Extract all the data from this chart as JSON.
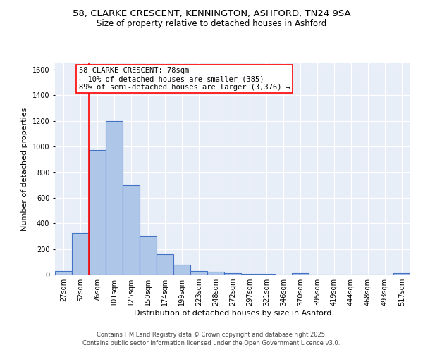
{
  "title_line1": "58, CLARKE CRESCENT, KENNINGTON, ASHFORD, TN24 9SA",
  "title_line2": "Size of property relative to detached houses in Ashford",
  "xlabel": "Distribution of detached houses by size in Ashford",
  "ylabel": "Number of detached properties",
  "categories": [
    "27sqm",
    "52sqm",
    "76sqm",
    "101sqm",
    "125sqm",
    "150sqm",
    "174sqm",
    "199sqm",
    "223sqm",
    "248sqm",
    "272sqm",
    "297sqm",
    "321sqm",
    "346sqm",
    "370sqm",
    "395sqm",
    "419sqm",
    "444sqm",
    "468sqm",
    "493sqm",
    "517sqm"
  ],
  "values": [
    25,
    325,
    975,
    1200,
    700,
    305,
    160,
    75,
    30,
    20,
    10,
    8,
    5,
    0,
    10,
    0,
    0,
    0,
    0,
    0,
    10
  ],
  "bar_color": "#aec6e8",
  "bar_edge_color": "#4472c4",
  "red_line_index": 2,
  "annotation_text": "58 CLARKE CRESCENT: 78sqm\n← 10% of detached houses are smaller (385)\n89% of semi-detached houses are larger (3,376) →",
  "annotation_box_color": "white",
  "annotation_border_color": "red",
  "ylim": [
    0,
    1650
  ],
  "yticks": [
    0,
    200,
    400,
    600,
    800,
    1000,
    1200,
    1400,
    1600
  ],
  "background_color": "#e8eef8",
  "grid_color": "#ffffff",
  "footer_line1": "Contains HM Land Registry data © Crown copyright and database right 2025.",
  "footer_line2": "Contains public sector information licensed under the Open Government Licence v3.0.",
  "title_fontsize": 9.5,
  "subtitle_fontsize": 8.5,
  "axis_label_fontsize": 8,
  "tick_fontsize": 7,
  "annotation_fontsize": 7.5,
  "footer_fontsize": 6
}
